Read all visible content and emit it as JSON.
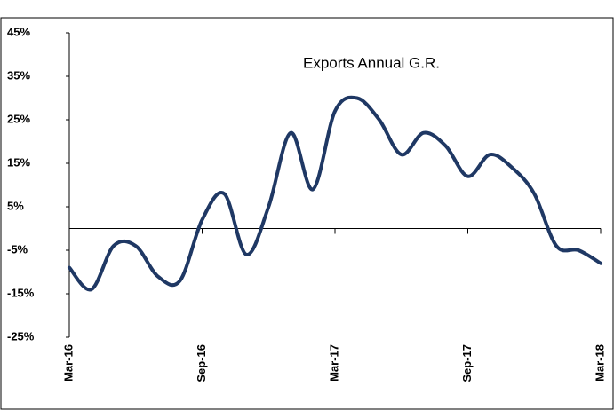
{
  "chart_data": {
    "type": "line",
    "categories": [
      "Mar-16",
      null,
      null,
      null,
      null,
      null,
      "Sep-16",
      null,
      null,
      null,
      null,
      null,
      "Mar-17",
      null,
      null,
      null,
      null,
      null,
      "Sep-17",
      null,
      null,
      null,
      null,
      null,
      "Mar-18"
    ],
    "series": [
      {
        "name": "Exports Annual G.R.",
        "color": "#1f3864",
        "values": [
          -9,
          -14,
          -4,
          -4,
          -11,
          -12,
          2,
          8,
          -6,
          5,
          22,
          9,
          27,
          30,
          25,
          17,
          22,
          19,
          12,
          17,
          14,
          8,
          -4,
          -5,
          -8
        ]
      }
    ],
    "ylim": [
      -25,
      45
    ],
    "yticks": [
      {
        "value": -25,
        "label": "-25%"
      },
      {
        "value": -15,
        "label": "-15%"
      },
      {
        "value": -5,
        "label": "-5%"
      },
      {
        "value": 5,
        "label": "5%"
      },
      {
        "value": 15,
        "label": "15%"
      },
      {
        "value": 25,
        "label": "25%"
      },
      {
        "value": 35,
        "label": "35%"
      },
      {
        "value": 45,
        "label": "45%"
      }
    ],
    "grid": false
  }
}
